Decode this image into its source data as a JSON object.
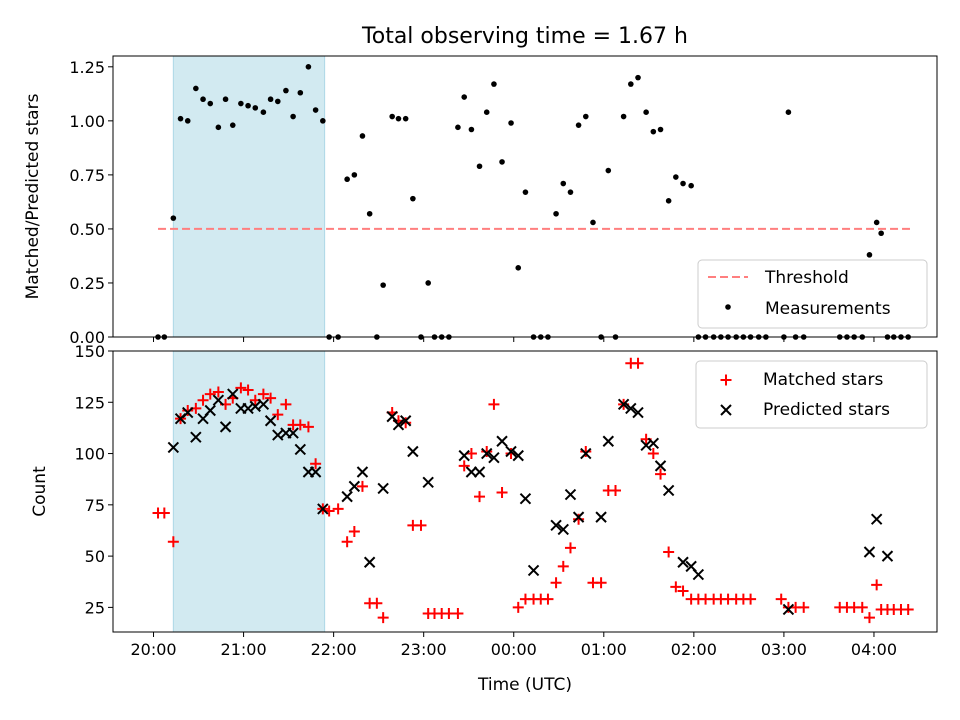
{
  "title": "Total observing time = 1.67 h",
  "xlabel": "Time (UTC)",
  "x_tick_labels": [
    "20:00",
    "21:00",
    "22:00",
    "23:00",
    "00:00",
    "01:00",
    "02:00",
    "03:00",
    "04:00"
  ],
  "colors": {
    "shade": "#add8e6",
    "threshold": "#ff7f7f",
    "measurements": "#000000",
    "matched": "#ff0000",
    "predicted": "#000000"
  },
  "chart_data": [
    {
      "type": "scatter",
      "ylabel": "Matched/Predicted stars",
      "xlim": [
        -0.45,
        8.7
      ],
      "ylim": [
        0,
        1.3
      ],
      "yticks": [
        0.0,
        0.25,
        0.5,
        0.75,
        1.0,
        1.25
      ],
      "ytick_labels": [
        "0.00",
        "0.25",
        "0.50",
        "0.75",
        "1.00",
        "1.25"
      ],
      "legend_position": "lower-right",
      "shaded_span": [
        0.22,
        1.9
      ],
      "threshold": {
        "name": "Threshold",
        "value": 0.5,
        "x_range": [
          0.05,
          8.4
        ]
      },
      "series": [
        {
          "name": "Measurements",
          "marker": "dot",
          "points": [
            [
              0.05,
              0.0
            ],
            [
              0.12,
              0.0
            ],
            [
              0.22,
              0.55
            ],
            [
              0.3,
              1.01
            ],
            [
              0.38,
              1.0
            ],
            [
              0.47,
              1.15
            ],
            [
              0.55,
              1.1
            ],
            [
              0.63,
              1.08
            ],
            [
              0.72,
              0.97
            ],
            [
              0.8,
              1.1
            ],
            [
              0.88,
              0.98
            ],
            [
              0.97,
              1.08
            ],
            [
              1.05,
              1.07
            ],
            [
              1.13,
              1.06
            ],
            [
              1.22,
              1.04
            ],
            [
              1.3,
              1.1
            ],
            [
              1.38,
              1.09
            ],
            [
              1.47,
              1.14
            ],
            [
              1.55,
              1.02
            ],
            [
              1.63,
              1.13
            ],
            [
              1.72,
              1.25
            ],
            [
              1.8,
              1.05
            ],
            [
              1.88,
              1.0
            ],
            [
              1.95,
              0.0
            ],
            [
              2.05,
              0.0
            ],
            [
              2.15,
              0.73
            ],
            [
              2.23,
              0.75
            ],
            [
              2.32,
              0.93
            ],
            [
              2.4,
              0.57
            ],
            [
              2.48,
              0.0
            ],
            [
              2.55,
              0.24
            ],
            [
              2.65,
              1.02
            ],
            [
              2.72,
              1.01
            ],
            [
              2.8,
              1.01
            ],
            [
              2.88,
              0.64
            ],
            [
              2.97,
              0.0
            ],
            [
              3.05,
              0.25
            ],
            [
              3.12,
              0.0
            ],
            [
              3.2,
              0.0
            ],
            [
              3.28,
              0.0
            ],
            [
              3.38,
              0.97
            ],
            [
              3.45,
              1.11
            ],
            [
              3.53,
              0.96
            ],
            [
              3.62,
              0.79
            ],
            [
              3.7,
              1.04
            ],
            [
              3.78,
              1.17
            ],
            [
              3.87,
              0.81
            ],
            [
              3.97,
              0.99
            ],
            [
              4.05,
              0.32
            ],
            [
              4.13,
              0.67
            ],
            [
              4.22,
              0.0
            ],
            [
              4.3,
              0.0
            ],
            [
              4.38,
              0.0
            ],
            [
              4.47,
              0.57
            ],
            [
              4.55,
              0.71
            ],
            [
              4.63,
              0.67
            ],
            [
              4.72,
              0.98
            ],
            [
              4.8,
              1.02
            ],
            [
              4.88,
              0.53
            ],
            [
              4.97,
              0.0
            ],
            [
              5.05,
              0.77
            ],
            [
              5.13,
              0.0
            ],
            [
              5.22,
              1.02
            ],
            [
              5.3,
              1.17
            ],
            [
              5.38,
              1.2
            ],
            [
              5.47,
              1.04
            ],
            [
              5.55,
              0.95
            ],
            [
              5.63,
              0.96
            ],
            [
              5.72,
              0.63
            ],
            [
              5.8,
              0.74
            ],
            [
              5.88,
              0.71
            ],
            [
              5.97,
              0.7
            ],
            [
              6.05,
              0.0
            ],
            [
              6.13,
              0.0
            ],
            [
              6.22,
              0.0
            ],
            [
              6.3,
              0.0
            ],
            [
              6.38,
              0.0
            ],
            [
              6.47,
              0.0
            ],
            [
              6.55,
              0.0
            ],
            [
              6.63,
              0.0
            ],
            [
              6.72,
              0.0
            ],
            [
              6.8,
              0.0
            ],
            [
              7.0,
              0.0
            ],
            [
              7.05,
              1.04
            ],
            [
              7.13,
              0.0
            ],
            [
              7.22,
              0.0
            ],
            [
              7.62,
              0.0
            ],
            [
              7.7,
              0.0
            ],
            [
              7.78,
              0.0
            ],
            [
              7.87,
              0.0
            ],
            [
              7.95,
              0.38
            ],
            [
              8.03,
              0.53
            ],
            [
              8.08,
              0.48
            ],
            [
              8.15,
              0.0
            ],
            [
              8.22,
              0.0
            ],
            [
              8.3,
              0.0
            ],
            [
              8.38,
              0.0
            ]
          ]
        }
      ]
    },
    {
      "type": "scatter",
      "ylabel": "Count",
      "xlim": [
        -0.45,
        8.7
      ],
      "ylim": [
        13,
        150
      ],
      "yticks": [
        25,
        50,
        75,
        100,
        125,
        150
      ],
      "ytick_labels": [
        "25",
        "50",
        "75",
        "100",
        "125",
        "150"
      ],
      "legend_position": "upper-right",
      "shaded_span": [
        0.22,
        1.9
      ],
      "series": [
        {
          "name": "Matched stars",
          "marker": "plus",
          "points": [
            [
              0.05,
              71
            ],
            [
              0.12,
              71
            ],
            [
              0.22,
              57
            ],
            [
              0.3,
              117
            ],
            [
              0.38,
              121
            ],
            [
              0.47,
              122
            ],
            [
              0.55,
              126
            ],
            [
              0.63,
              129
            ],
            [
              0.72,
              130
            ],
            [
              0.8,
              124
            ],
            [
              0.88,
              127
            ],
            [
              0.97,
              132
            ],
            [
              1.05,
              131
            ],
            [
              1.13,
              126
            ],
            [
              1.22,
              129
            ],
            [
              1.3,
              127
            ],
            [
              1.38,
              119
            ],
            [
              1.47,
              124
            ],
            [
              1.55,
              114
            ],
            [
              1.63,
              114
            ],
            [
              1.72,
              113
            ],
            [
              1.8,
              95
            ],
            [
              1.88,
              73
            ],
            [
              1.95,
              72
            ],
            [
              2.05,
              73
            ],
            [
              2.15,
              57
            ],
            [
              2.23,
              62
            ],
            [
              2.32,
              84
            ],
            [
              2.4,
              27
            ],
            [
              2.48,
              27
            ],
            [
              2.55,
              20
            ],
            [
              2.65,
              120
            ],
            [
              2.72,
              116
            ],
            [
              2.8,
              115
            ],
            [
              2.88,
              65
            ],
            [
              2.97,
              65
            ],
            [
              3.05,
              22
            ],
            [
              3.12,
              22
            ],
            [
              3.2,
              22
            ],
            [
              3.28,
              22
            ],
            [
              3.38,
              22
            ],
            [
              3.45,
              94
            ],
            [
              3.53,
              100
            ],
            [
              3.62,
              79
            ],
            [
              3.7,
              101
            ],
            [
              3.78,
              124
            ],
            [
              3.87,
              81
            ],
            [
              3.97,
              100
            ],
            [
              4.05,
              25
            ],
            [
              4.13,
              29
            ],
            [
              4.22,
              29
            ],
            [
              4.3,
              29
            ],
            [
              4.38,
              29
            ],
            [
              4.47,
              37
            ],
            [
              4.55,
              45
            ],
            [
              4.63,
              54
            ],
            [
              4.72,
              68
            ],
            [
              4.8,
              101
            ],
            [
              4.88,
              37
            ],
            [
              4.97,
              37
            ],
            [
              5.05,
              82
            ],
            [
              5.13,
              82
            ],
            [
              5.22,
              124
            ],
            [
              5.3,
              144
            ],
            [
              5.38,
              144
            ],
            [
              5.47,
              107
            ],
            [
              5.55,
              100
            ],
            [
              5.63,
              90
            ],
            [
              5.72,
              52
            ],
            [
              5.8,
              35
            ],
            [
              5.88,
              33
            ],
            [
              5.97,
              29
            ],
            [
              6.05,
              29
            ],
            [
              6.13,
              29
            ],
            [
              6.22,
              29
            ],
            [
              6.3,
              29
            ],
            [
              6.38,
              29
            ],
            [
              6.47,
              29
            ],
            [
              6.55,
              29
            ],
            [
              6.63,
              29
            ],
            [
              6.97,
              29
            ],
            [
              7.05,
              25
            ],
            [
              7.13,
              25
            ],
            [
              7.22,
              25
            ],
            [
              7.62,
              25
            ],
            [
              7.7,
              25
            ],
            [
              7.78,
              25
            ],
            [
              7.87,
              25
            ],
            [
              7.95,
              20
            ],
            [
              8.03,
              36
            ],
            [
              8.08,
              24
            ],
            [
              8.15,
              24
            ],
            [
              8.22,
              24
            ],
            [
              8.3,
              24
            ],
            [
              8.38,
              24
            ]
          ]
        },
        {
          "name": "Predicted stars",
          "marker": "x",
          "points": [
            [
              0.22,
              103
            ],
            [
              0.3,
              117
            ],
            [
              0.38,
              120
            ],
            [
              0.47,
              108
            ],
            [
              0.55,
              117
            ],
            [
              0.63,
              121
            ],
            [
              0.72,
              126
            ],
            [
              0.8,
              113
            ],
            [
              0.88,
              129
            ],
            [
              0.97,
              122
            ],
            [
              1.05,
              122
            ],
            [
              1.13,
              123
            ],
            [
              1.22,
              124
            ],
            [
              1.3,
              116
            ],
            [
              1.38,
              109
            ],
            [
              1.47,
              110
            ],
            [
              1.55,
              110
            ],
            [
              1.63,
              102
            ],
            [
              1.72,
              91
            ],
            [
              1.8,
              91
            ],
            [
              1.88,
              73
            ],
            [
              2.15,
              79
            ],
            [
              2.23,
              84
            ],
            [
              2.32,
              91
            ],
            [
              2.4,
              47
            ],
            [
              2.55,
              83
            ],
            [
              2.65,
              118
            ],
            [
              2.72,
              114
            ],
            [
              2.8,
              116
            ],
            [
              2.88,
              101
            ],
            [
              3.05,
              86
            ],
            [
              3.45,
              99
            ],
            [
              3.53,
              91
            ],
            [
              3.62,
              91
            ],
            [
              3.7,
              100
            ],
            [
              3.78,
              98
            ],
            [
              3.87,
              106
            ],
            [
              3.97,
              101
            ],
            [
              4.05,
              99
            ],
            [
              4.13,
              78
            ],
            [
              4.22,
              43
            ],
            [
              4.47,
              65
            ],
            [
              4.55,
              63
            ],
            [
              4.63,
              80
            ],
            [
              4.72,
              69
            ],
            [
              4.8,
              100
            ],
            [
              4.97,
              69
            ],
            [
              5.05,
              106
            ],
            [
              5.22,
              124
            ],
            [
              5.3,
              122
            ],
            [
              5.38,
              120
            ],
            [
              5.47,
              104
            ],
            [
              5.55,
              105
            ],
            [
              5.63,
              94
            ],
            [
              5.72,
              82
            ],
            [
              5.88,
              47
            ],
            [
              5.97,
              45
            ],
            [
              6.05,
              41
            ],
            [
              7.05,
              24
            ],
            [
              7.95,
              52
            ],
            [
              8.03,
              68
            ],
            [
              8.15,
              50
            ]
          ]
        }
      ]
    }
  ]
}
